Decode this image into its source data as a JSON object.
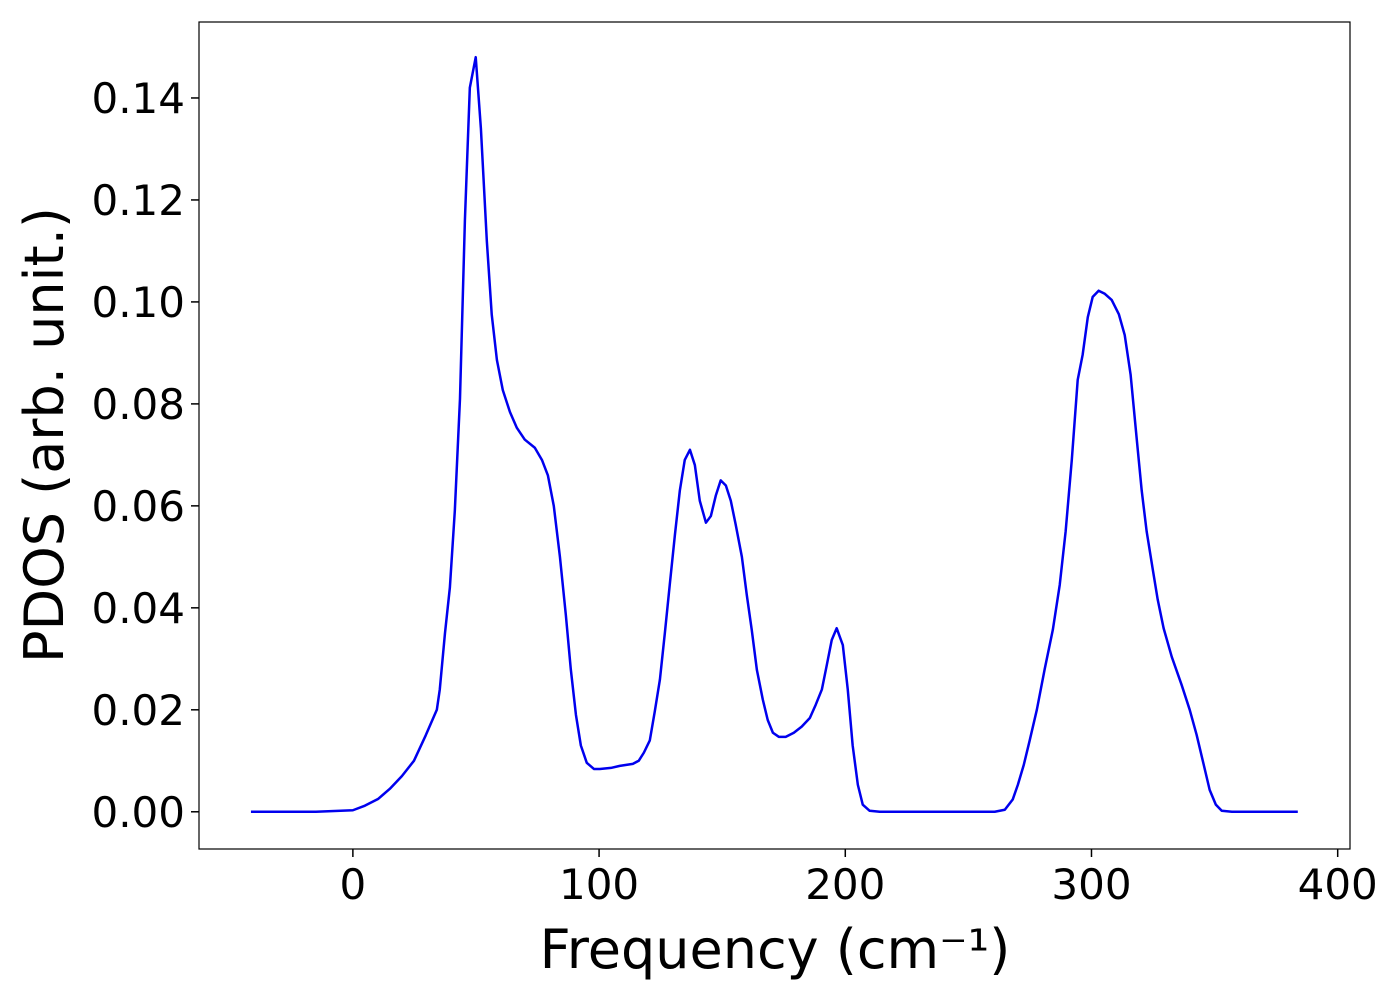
{
  "chart_data": {
    "type": "line",
    "xlabel": "Frequency (cm⁻¹)",
    "ylabel": "PDOS (arb. unit.)",
    "xlim": [
      -62.5,
      405
    ],
    "ylim": [
      -0.0073,
      0.1549
    ],
    "xticks": [
      0,
      100,
      200,
      300,
      400
    ],
    "yticks": [
      {
        "value": 0,
        "label": "0.00"
      },
      {
        "value": 0.02,
        "label": "0.02"
      },
      {
        "value": 0.04,
        "label": "0.04"
      },
      {
        "value": 0.06,
        "label": "0.06"
      },
      {
        "value": 0.08,
        "label": "0.08"
      },
      {
        "value": 0.1,
        "label": "0.10"
      },
      {
        "value": 0.12,
        "label": "0.12"
      },
      {
        "value": 0.14,
        "label": "0.14"
      }
    ],
    "grid": false,
    "series": [
      {
        "name": "PDOS",
        "color": "#0000ee",
        "x": [
          -41.4,
          -15,
          0,
          4.9,
          10.2,
          15.0,
          19.9,
          24.8,
          29.6,
          34.1,
          35.3,
          37.4,
          39.4,
          41.4,
          43.5,
          45.5,
          47.5,
          49.9,
          52.0,
          54.4,
          56.4,
          58.5,
          60.9,
          63.8,
          66.6,
          69.8,
          73.9,
          76.8,
          79.2,
          81.6,
          84.1,
          86.5,
          88.5,
          90.6,
          92.6,
          95.0,
          97.9,
          100.3,
          104.8,
          108.4,
          113.7,
          116.1,
          118.2,
          120.6,
          122.6,
          124.7,
          126.7,
          128.7,
          130.8,
          132.8,
          134.8,
          136.9,
          138.9,
          140.9,
          143.4,
          145.4,
          147.4,
          149.4,
          151.5,
          153.5,
          155.5,
          158.0,
          160.0,
          162.0,
          164.1,
          166.5,
          168.5,
          170.6,
          173.0,
          175.8,
          179.1,
          182.3,
          185.6,
          188.0,
          190.5,
          192.5,
          194.5,
          196.5,
          199.0,
          201.0,
          203.0,
          205.1,
          207.1,
          209.9,
          214.0,
          260.7,
          264.8,
          268.0,
          270.1,
          272.5,
          274.9,
          277.8,
          281.0,
          284.3,
          287.1,
          289.5,
          292.0,
          294.4,
          296.4,
          298.5,
          300.5,
          302.9,
          305.4,
          308.2,
          311.1,
          313.5,
          315.9,
          318.4,
          320.4,
          322.4,
          324.9,
          326.9,
          329.3,
          332.6,
          336.6,
          339.9,
          342.7,
          345.6,
          348.0,
          350.5,
          352.9,
          357.0,
          383.8
        ],
        "values": [
          0,
          0,
          0.0003,
          0.0012,
          0.0025,
          0.0045,
          0.007,
          0.01,
          0.015,
          0.02,
          0.024,
          0.035,
          0.044,
          0.059,
          0.081,
          0.116,
          0.142,
          0.148,
          0.134,
          0.112,
          0.0975,
          0.0886,
          0.0827,
          0.0784,
          0.0753,
          0.073,
          0.0714,
          0.069,
          0.066,
          0.06,
          0.05,
          0.0386,
          0.028,
          0.019,
          0.013,
          0.0096,
          0.0084,
          0.0084,
          0.0086,
          0.009,
          0.0094,
          0.01,
          0.0116,
          0.014,
          0.0196,
          0.0259,
          0.035,
          0.0445,
          0.0543,
          0.063,
          0.069,
          0.071,
          0.068,
          0.061,
          0.0567,
          0.058,
          0.062,
          0.065,
          0.064,
          0.061,
          0.0563,
          0.05,
          0.0425,
          0.0357,
          0.0278,
          0.022,
          0.018,
          0.0155,
          0.0147,
          0.0147,
          0.0155,
          0.0167,
          0.0184,
          0.021,
          0.024,
          0.0288,
          0.0337,
          0.036,
          0.0327,
          0.024,
          0.013,
          0.0053,
          0.0014,
          0.0002,
          0,
          0,
          0.0004,
          0.0024,
          0.0053,
          0.0092,
          0.014,
          0.02,
          0.028,
          0.0357,
          0.0445,
          0.055,
          0.069,
          0.0847,
          0.0896,
          0.097,
          0.101,
          0.1022,
          0.1016,
          0.1004,
          0.0976,
          0.0935,
          0.0857,
          0.073,
          0.063,
          0.055,
          0.0475,
          0.0416,
          0.036,
          0.0304,
          0.0249,
          0.02,
          0.0151,
          0.0092,
          0.0043,
          0.0014,
          0.0002,
          0,
          0
        ]
      }
    ]
  }
}
